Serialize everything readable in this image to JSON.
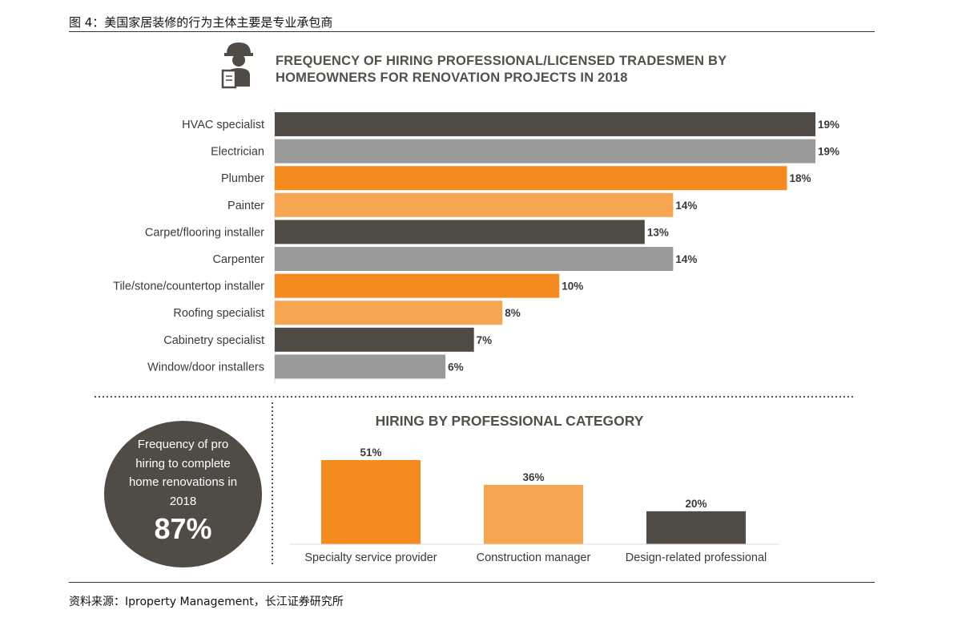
{
  "caption": "图 4：美国家居装修的行为主体主要是专业承包商",
  "source": "资料来源：Iproperty Management，长江证券研究所",
  "colors": {
    "dark": "#504b45",
    "gray": "#9a9a9a",
    "orange": "#f58a1f",
    "light_orange": "#f6a650"
  },
  "icon": "worker-with-clipboard-icon",
  "circle": {
    "lines": [
      "Frequency of pro",
      "hiring to complete",
      "home renovations in",
      "2018"
    ],
    "value": "87%"
  },
  "chart_data": [
    {
      "type": "bar",
      "orientation": "horizontal",
      "title": "FREQUENCY OF HIRING PROFESSIONAL/LICENSED TRADESMEN BY HOMEOWNERS  FOR RENOVATION PROJECTS IN 2018",
      "categories": [
        "HVAC specialist",
        "Electrician",
        "Plumber",
        "Painter",
        "Carpet/flooring installer",
        "Carpenter",
        "Tile/stone/countertop installer",
        "Roofing specialist",
        "Cabinetry specialist",
        "Window/door installers"
      ],
      "values": [
        19,
        19,
        18,
        14,
        13,
        14,
        10,
        8,
        7,
        6
      ],
      "labels": [
        "19%",
        "19%",
        "18%",
        "14%",
        "13%",
        "14%",
        "10%",
        "8%",
        "7%",
        "6%"
      ],
      "bar_colors": [
        "#504b45",
        "#9a9a9a",
        "#f58a1f",
        "#f6a650",
        "#504b45",
        "#9a9a9a",
        "#f58a1f",
        "#f6a650",
        "#504b45",
        "#9a9a9a"
      ],
      "unit": "%",
      "xlim": [
        0,
        19
      ]
    },
    {
      "type": "bar",
      "orientation": "vertical",
      "title": "HIRING BY PROFESSIONAL CATEGORY",
      "categories": [
        "Specialty service provider",
        "Construction manager",
        "Design-related professional"
      ],
      "values": [
        51,
        36,
        20
      ],
      "labels": [
        "51%",
        "36%",
        "20%"
      ],
      "bar_colors": [
        "#f58a1f",
        "#f6a650",
        "#504b45"
      ],
      "unit": "%",
      "ylim": [
        0,
        51
      ]
    }
  ]
}
